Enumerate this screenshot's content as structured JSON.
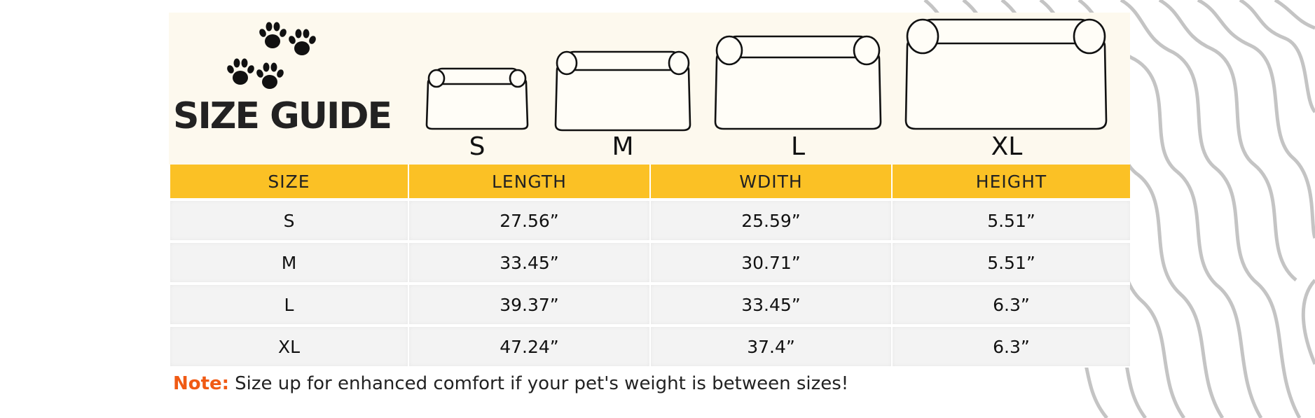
{
  "title": "SIZE GUIDE",
  "icons": [
    "paw-print-icon"
  ],
  "bed_labels": [
    "S",
    "M",
    "L",
    "XL"
  ],
  "table": {
    "headers": [
      "SIZE",
      "LENGTH",
      "WDITH",
      "HEIGHT"
    ],
    "rows": [
      [
        "S",
        "27.56”",
        "25.59”",
        "5.51”"
      ],
      [
        "M",
        "33.45”",
        "30.71”",
        "5.51”"
      ],
      [
        "L",
        "39.37”",
        "33.45”",
        "6.3”"
      ],
      [
        "XL",
        "47.24”",
        "37.4”",
        "6.3”"
      ]
    ]
  },
  "note": {
    "label": "Note:",
    "text": "Size up for enhanced comfort if your pet's weight is between sizes!"
  },
  "colors": {
    "header_band": "#fdf9ee",
    "table_header": "#fbc125",
    "row_background": "#f3f3f3",
    "note_label": "#f05a14",
    "decoration_lines": "#c4c4c4"
  }
}
